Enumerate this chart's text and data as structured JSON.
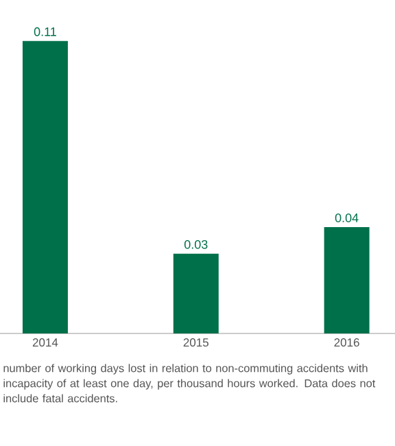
{
  "chart_data": {
    "type": "bar",
    "categories": [
      "2014",
      "2015",
      "2016"
    ],
    "values": [
      0.11,
      0.03,
      0.04
    ],
    "color": "#00704a",
    "data_labels": true,
    "annotations": [
      "number of working days lost in relation to non-commuting accidents with incapacity of at least one day, per thousand hours worked. Data does not include fatal accidents."
    ]
  }
}
